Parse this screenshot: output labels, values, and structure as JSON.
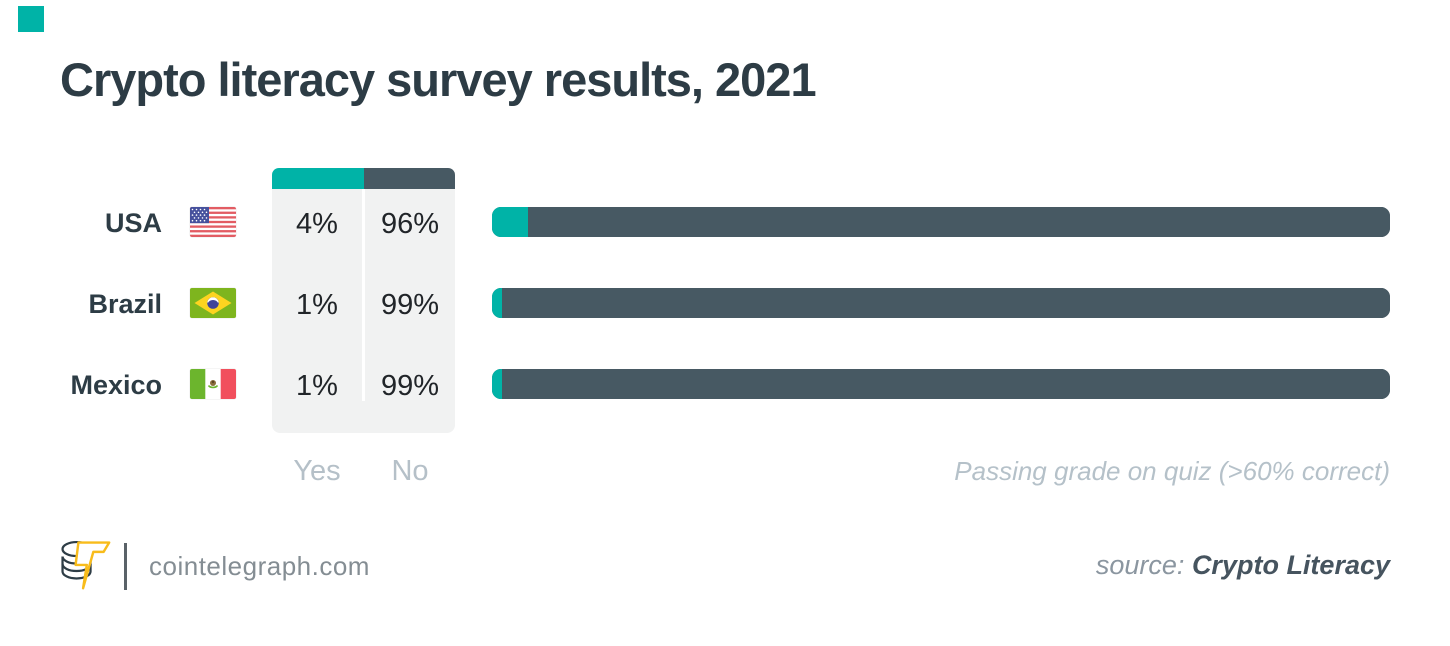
{
  "page": {
    "background": "#ffffff",
    "accent_teal": "#00b3a7",
    "accent_slate": "#475963"
  },
  "title": "Crypto literacy survey results, 2021",
  "chart_data": {
    "type": "bar",
    "orientation": "horizontal",
    "title": "Crypto literacy survey results, 2021",
    "categories": [
      "USA",
      "Brazil",
      "Mexico"
    ],
    "series": [
      {
        "name": "Yes",
        "color": "#00b3a7",
        "values": [
          4,
          1,
          1
        ]
      },
      {
        "name": "No",
        "color": "#475963",
        "values": [
          96,
          99,
          99
        ]
      }
    ],
    "value_format": "percent",
    "xlim": [
      0,
      100
    ],
    "legend_position": "table-left",
    "grid": false,
    "annotation": "Passing grade on quiz (>60% correct)"
  },
  "table": {
    "columns": {
      "yes": "Yes",
      "no": "No"
    },
    "rows": [
      {
        "country": "USA",
        "flag_icon": "usa-flag",
        "yes": "4%",
        "no": "96%"
      },
      {
        "country": "Brazil",
        "flag_icon": "brazil-flag",
        "yes": "1%",
        "no": "99%"
      },
      {
        "country": "Mexico",
        "flag_icon": "mexico-flag",
        "yes": "1%",
        "no": "99%"
      }
    ]
  },
  "annotation": "Passing grade on quiz (>60% correct)",
  "footer": {
    "logo_icon": "cointelegraph-logo",
    "site": "cointelegraph.com",
    "source_label": "source:",
    "source_name": "Crypto Literacy"
  }
}
